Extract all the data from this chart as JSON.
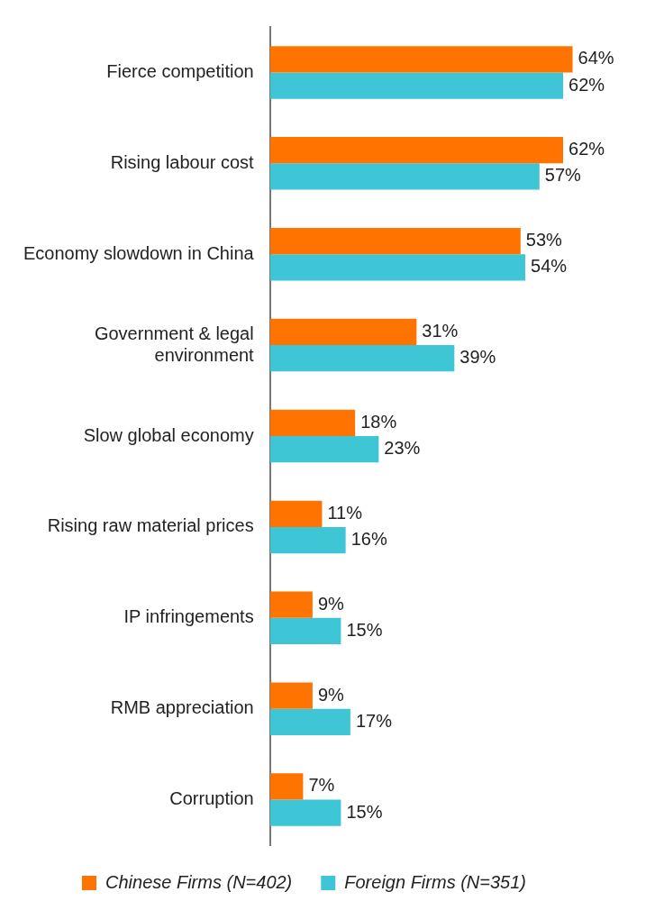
{
  "chart_data": {
    "type": "bar",
    "orientation": "horizontal",
    "grid": false,
    "legend": "bottom",
    "categories": [
      "Fierce competition",
      "Rising labour cost",
      "Economy slowdown in China",
      "Government & legal environment",
      "Slow global economy",
      "Rising raw material prices",
      "IP infringements",
      "RMB appreciation",
      "Corruption"
    ],
    "series": [
      {
        "name": "Chinese Firms (N=402)",
        "color": "#ff7400",
        "values": [
          64,
          62,
          53,
          31,
          18,
          11,
          9,
          9,
          7
        ],
        "value_labels": [
          "64%",
          "62%",
          "53%",
          "31%",
          "18%",
          "11%",
          "9%",
          "9%",
          "7%"
        ]
      },
      {
        "name": "Foreign Firms (N=351)",
        "color": "#3ec5d6",
        "values": [
          62,
          57,
          54,
          39,
          23,
          16,
          15,
          17,
          15
        ],
        "value_labels": [
          "62%",
          "57%",
          "54%",
          "39%",
          "23%",
          "16%",
          "15%",
          "17%",
          "15%"
        ]
      }
    ]
  }
}
